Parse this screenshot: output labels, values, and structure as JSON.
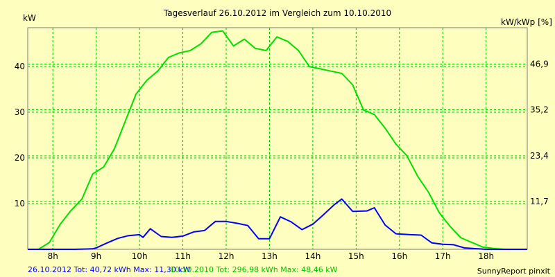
{
  "chart_data": {
    "type": "line",
    "title": "Tagesverlauf 26.10.2012 im Vergleich zum 10.10.2010",
    "ylabel_left": "kW",
    "ylabel_right": "kW/kWp [%]",
    "ylim": [
      0,
      48.5
    ],
    "y_ticks_left": [
      "10",
      "20",
      "30",
      "40"
    ],
    "y_ticks_right": [
      "11,7",
      "23,4",
      "35,2",
      "46,9"
    ],
    "x_ticks": [
      "8h",
      "9h",
      "10h",
      "11h",
      "12h",
      "13h",
      "14h",
      "15h",
      "16h",
      "17h",
      "18h"
    ],
    "xlim_hours": [
      7.42,
      18.95
    ],
    "grid": true,
    "colors": {
      "background": "#fefebe",
      "grid": "#00c000",
      "frame": "#808080"
    },
    "series": [
      {
        "name": "26.10.2012",
        "color": "#0000ff",
        "x": [
          7.42,
          8.5,
          8.92,
          9.0,
          9.25,
          9.5,
          9.75,
          10.0,
          10.08,
          10.25,
          10.5,
          10.75,
          11.0,
          11.25,
          11.5,
          11.75,
          12.0,
          12.25,
          12.5,
          12.75,
          13.0,
          13.25,
          13.5,
          13.75,
          14.0,
          14.25,
          14.5,
          14.67,
          14.92,
          15.25,
          15.42,
          15.67,
          15.92,
          16.25,
          16.5,
          16.75,
          17.0,
          17.25,
          17.5,
          18.0,
          18.5,
          18.95
        ],
        "y": [
          0,
          0,
          0.1,
          0.3,
          1.4,
          2.4,
          3.0,
          3.2,
          2.6,
          4.5,
          2.8,
          2.6,
          2.9,
          3.8,
          4.1,
          6.1,
          6.1,
          5.7,
          5.2,
          2.3,
          2.3,
          7.1,
          6.0,
          4.3,
          5.5,
          7.6,
          9.8,
          11.0,
          8.3,
          8.4,
          9.1,
          5.3,
          3.4,
          3.2,
          3.1,
          1.4,
          1.1,
          1.0,
          0.3,
          0,
          0,
          0
        ]
      },
      {
        "name": "10.10.2010",
        "color": "#00e000",
        "x": [
          7.42,
          7.67,
          7.92,
          8.17,
          8.42,
          8.67,
          8.92,
          9.17,
          9.42,
          9.67,
          9.92,
          10.17,
          10.42,
          10.67,
          10.92,
          11.17,
          11.42,
          11.67,
          11.92,
          12.17,
          12.42,
          12.67,
          12.92,
          13.17,
          13.42,
          13.67,
          13.92,
          14.17,
          14.42,
          14.67,
          14.92,
          15.17,
          15.42,
          15.67,
          15.92,
          16.17,
          16.42,
          16.67,
          16.92,
          17.17,
          17.42,
          17.67,
          17.92,
          18.17,
          18.42,
          18.67,
          18.95
        ],
        "y": [
          0,
          0,
          1.5,
          5.5,
          8.5,
          11.0,
          16.5,
          18.0,
          22.0,
          28.0,
          34.0,
          37.0,
          39.0,
          42.0,
          43.0,
          43.5,
          45.0,
          47.5,
          47.8,
          44.5,
          46.0,
          44.0,
          43.5,
          46.5,
          45.5,
          43.5,
          40.0,
          39.5,
          39.0,
          38.5,
          36.0,
          30.5,
          29.5,
          26.5,
          23.0,
          20.5,
          16.0,
          12.5,
          8.0,
          5.0,
          2.5,
          1.5,
          0.5,
          0.2,
          0,
          0,
          0
        ]
      }
    ],
    "footer": {
      "series1_text": "26.10.2012 Tot: 40,72 kWh Max: 11,30 kW",
      "series2_text": "10.10.2010 Tot: 296,98 kWh Max: 48,46 kW",
      "credit": "SunnyReport pinxit"
    }
  }
}
